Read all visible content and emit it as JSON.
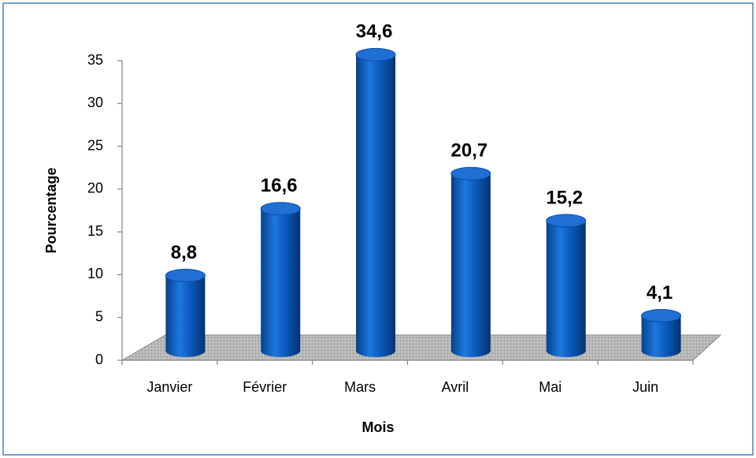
{
  "chart_data": {
    "type": "bar",
    "categories": [
      "Janvier",
      "Février",
      "Mars",
      "Avril",
      "Mai",
      "Juin"
    ],
    "values": [
      8.8,
      16.6,
      34.6,
      20.7,
      15.2,
      4.1
    ],
    "value_labels": [
      "8,8",
      "16,6",
      "34,6",
      "20,7",
      "15,2",
      "4,1"
    ],
    "color": "#0b5cc0",
    "x_label": "Mois",
    "y_label": "Pourcentage",
    "ylim": [
      0,
      35
    ],
    "yticks": [
      0,
      5,
      10,
      15,
      20,
      25,
      30,
      35
    ],
    "grid": false
  }
}
